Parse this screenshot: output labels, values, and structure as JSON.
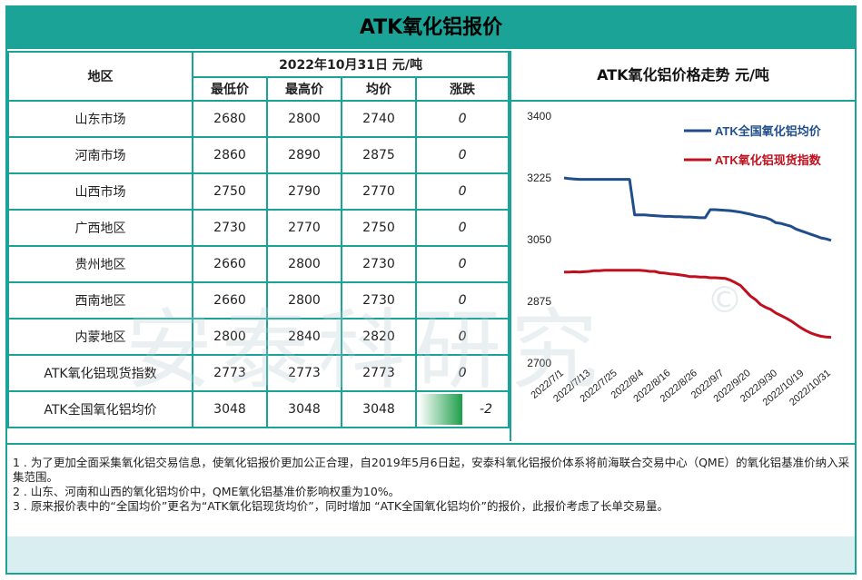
{
  "title": "ATK氧化铝报价",
  "table": {
    "region_header": "地区",
    "date_header": "2022年10月31日  元/吨",
    "columns": [
      "最低价",
      "最高价",
      "均价",
      "涨跌"
    ],
    "rows": [
      {
        "region": "山东市场",
        "low": "2680",
        "high": "2800",
        "avg": "2740",
        "change": "0"
      },
      {
        "region": "河南市场",
        "low": "2860",
        "high": "2890",
        "avg": "2875",
        "change": "0"
      },
      {
        "region": "山西市场",
        "low": "2750",
        "high": "2790",
        "avg": "2770",
        "change": "0"
      },
      {
        "region": "广西地区",
        "low": "2730",
        "high": "2770",
        "avg": "2750",
        "change": "0"
      },
      {
        "region": "贵州地区",
        "low": "2660",
        "high": "2800",
        "avg": "2730",
        "change": "0"
      },
      {
        "region": "西南地区",
        "low": "2660",
        "high": "2800",
        "avg": "2730",
        "change": "0"
      },
      {
        "region": "内蒙地区",
        "low": "2800",
        "high": "2840",
        "avg": "2820",
        "change": "0"
      },
      {
        "region": "ATK氧化铝现货指数",
        "low": "2773",
        "high": "2773",
        "avg": "2773",
        "change": "0"
      },
      {
        "region": "ATK全国氧化铝均价",
        "low": "3048",
        "high": "3048",
        "avg": "3048",
        "change": "-2"
      }
    ]
  },
  "chart_data": {
    "type": "line",
    "title": "ATK氧化铝价格走势  元/吨",
    "x_ticks": [
      "2022/7/1",
      "2022/7/13",
      "2022/7/25",
      "2022/8/4",
      "2022/8/16",
      "2022/8/26",
      "2022/9/7",
      "2022/9/20",
      "2022/9/30",
      "2022/10/19",
      "2022/10/31"
    ],
    "ylim": [
      2700,
      3400
    ],
    "y_ticks": [
      2700,
      2875,
      3050,
      3225,
      3400
    ],
    "series": [
      {
        "name": "ATK全国氧化铝均价",
        "color": "#1f4e8c",
        "values": [
          3225,
          3223,
          3222,
          3221,
          3221,
          3221,
          3221,
          3221,
          3221,
          3221,
          3221,
          3221,
          3221,
          3221,
          3120,
          3120,
          3120,
          3119,
          3118,
          3117,
          3116,
          3116,
          3115,
          3115,
          3114,
          3114,
          3113,
          3112,
          3112,
          3135,
          3135,
          3134,
          3133,
          3132,
          3130,
          3128,
          3125,
          3122,
          3118,
          3115,
          3112,
          3107,
          3098,
          3096,
          3092,
          3088,
          3080,
          3075,
          3070,
          3065,
          3060,
          3055,
          3052,
          3048
        ]
      },
      {
        "name": "ATK氧化铝现货指数",
        "color": "#c0101e",
        "values": [
          2958,
          2958,
          2959,
          2958,
          2959,
          2960,
          2962,
          2962,
          2963,
          2963,
          2963,
          2963,
          2963,
          2963,
          2963,
          2963,
          2962,
          2960,
          2960,
          2956,
          2955,
          2953,
          2952,
          2950,
          2948,
          2945,
          2945,
          2944,
          2944,
          2942,
          2942,
          2941,
          2940,
          2935,
          2928,
          2920,
          2905,
          2890,
          2880,
          2866,
          2858,
          2852,
          2842,
          2835,
          2828,
          2820,
          2810,
          2800,
          2792,
          2785,
          2780,
          2776,
          2774,
          2773
        ]
      }
    ],
    "legend_position": "top-right"
  },
  "notes": [
    "1 . 为了更加全面采集氧化铝交易信息，使氧化铝报价更加公正合理，自2019年5月6日起，安泰科氧化铝报价体系将前海联合交易中心（QME）的氧化铝基准价纳入采集范围。",
    "2 . 山东、河南和山西的氧化铝均价中，QME氧化铝基准价影响权重为10%。",
    "3 . 原来报价表中的“全国均价”更名为“ATK氧化铝现货均价”，同时增加 “ATK全国氧化铝均价”的报价，此报价考虑了长单交易量。"
  ],
  "watermark": "安泰科研究"
}
